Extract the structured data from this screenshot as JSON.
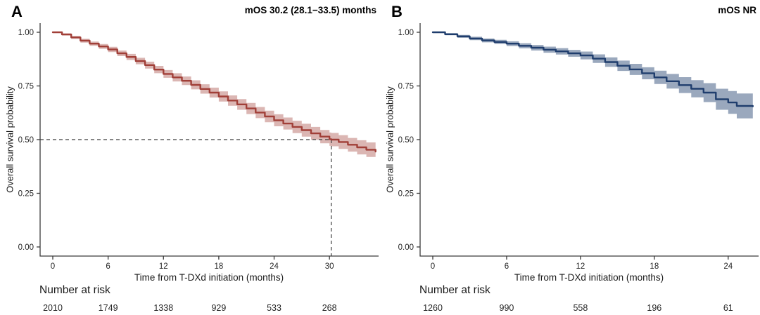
{
  "figure": {
    "kind": "kaplan-meier-overall-survival",
    "background_color": "#ffffff",
    "axis_color": "#3a3a3a",
    "tick_text_color": "#262626"
  },
  "chart_data": [
    {
      "type": "line",
      "panel_label": "A",
      "title": "mOS 30.2 (28.1−33.5) months",
      "xlabel": "Time from T-DXd initiation (months)",
      "ylabel": "Overall survival probability",
      "x_ticks": [
        0,
        6,
        12,
        18,
        24,
        30
      ],
      "x_max": 35.1,
      "y_ticks": [
        "0.00",
        "0.25",
        "0.50",
        "0.75",
        "1.00"
      ],
      "ylim": [
        0,
        1
      ],
      "grid": false,
      "legend": "none",
      "line_color": "#A13F38",
      "band_opacity": 0.38,
      "median": {
        "time": 30.2,
        "surv": 0.5
      },
      "risk_label": "Number at risk",
      "risk_counts": [
        2010,
        1749,
        1338,
        929,
        533,
        268
      ],
      "points": [
        [
          0,
          1.0,
          0.0
        ],
        [
          1,
          0.99,
          0.005
        ],
        [
          2,
          0.976,
          0.007
        ],
        [
          3,
          0.961,
          0.009
        ],
        [
          4,
          0.947,
          0.01
        ],
        [
          5,
          0.934,
          0.011
        ],
        [
          6,
          0.92,
          0.012
        ],
        [
          7,
          0.902,
          0.013
        ],
        [
          8,
          0.885,
          0.014
        ],
        [
          9,
          0.866,
          0.015
        ],
        [
          10,
          0.847,
          0.016
        ],
        [
          11,
          0.826,
          0.017
        ],
        [
          12,
          0.806,
          0.018
        ],
        [
          13,
          0.79,
          0.019
        ],
        [
          14,
          0.774,
          0.02
        ],
        [
          15,
          0.755,
          0.021
        ],
        [
          16,
          0.736,
          0.022
        ],
        [
          17,
          0.719,
          0.023
        ],
        [
          18,
          0.701,
          0.024
        ],
        [
          19,
          0.682,
          0.024
        ],
        [
          20,
          0.664,
          0.025
        ],
        [
          21,
          0.645,
          0.026
        ],
        [
          22,
          0.626,
          0.026
        ],
        [
          23,
          0.608,
          0.027
        ],
        [
          24,
          0.59,
          0.028
        ],
        [
          25,
          0.575,
          0.028
        ],
        [
          26,
          0.559,
          0.029
        ],
        [
          27,
          0.544,
          0.03
        ],
        [
          28,
          0.529,
          0.03
        ],
        [
          29,
          0.514,
          0.031
        ],
        [
          30,
          0.502,
          0.031
        ],
        [
          30.2,
          0.5,
          0.031
        ],
        [
          31,
          0.489,
          0.032
        ],
        [
          32,
          0.476,
          0.032
        ],
        [
          33,
          0.464,
          0.033
        ],
        [
          34,
          0.453,
          0.034
        ],
        [
          35,
          0.444,
          0.034
        ]
      ]
    },
    {
      "type": "line",
      "panel_label": "B",
      "title": "mOS NR",
      "xlabel": "Time from T-DXd initiation (months)",
      "ylabel": "Overall survival probability",
      "x_ticks": [
        0,
        6,
        12,
        18,
        24
      ],
      "x_max": 26.3,
      "y_ticks": [
        "0.00",
        "0.25",
        "0.50",
        "0.75",
        "1.00"
      ],
      "ylim": [
        0,
        1
      ],
      "grid": false,
      "legend": "none",
      "line_color": "#1F3D6D",
      "band_opacity": 0.45,
      "median": null,
      "risk_label": "Number at risk",
      "risk_counts": [
        1260,
        990,
        558,
        196,
        61
      ],
      "points": [
        [
          0,
          1.0,
          0.0
        ],
        [
          1,
          0.991,
          0.005
        ],
        [
          2,
          0.981,
          0.007
        ],
        [
          3,
          0.971,
          0.008
        ],
        [
          4,
          0.962,
          0.009
        ],
        [
          5,
          0.955,
          0.01
        ],
        [
          6,
          0.947,
          0.011
        ],
        [
          7,
          0.937,
          0.012
        ],
        [
          8,
          0.928,
          0.013
        ],
        [
          9,
          0.919,
          0.014
        ],
        [
          10,
          0.911,
          0.015
        ],
        [
          11,
          0.902,
          0.016
        ],
        [
          12,
          0.892,
          0.018
        ],
        [
          13,
          0.877,
          0.02
        ],
        [
          14,
          0.861,
          0.022
        ],
        [
          15,
          0.844,
          0.024
        ],
        [
          16,
          0.827,
          0.026
        ],
        [
          17,
          0.809,
          0.028
        ],
        [
          18,
          0.79,
          0.031
        ],
        [
          19,
          0.772,
          0.034
        ],
        [
          20,
          0.754,
          0.037
        ],
        [
          21,
          0.737,
          0.04
        ],
        [
          22,
          0.719,
          0.044
        ],
        [
          23,
          0.688,
          0.049
        ],
        [
          24,
          0.673,
          0.053
        ],
        [
          24.7,
          0.657,
          0.058
        ],
        [
          26,
          0.655,
          0.06
        ]
      ]
    }
  ]
}
